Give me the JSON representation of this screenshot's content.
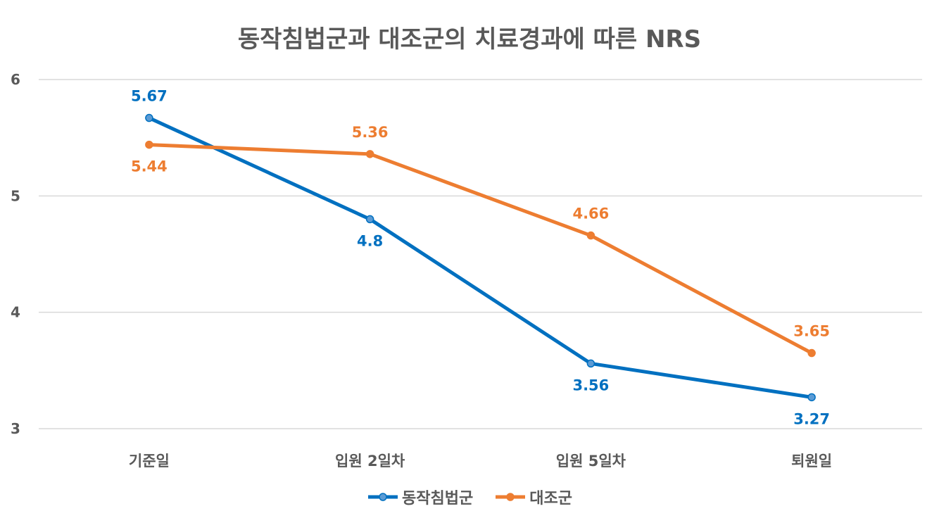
{
  "chart_data": {
    "type": "line",
    "title": "동작침법군과 대조군의 치료경과에 따른 NRS",
    "categories": [
      "기준일",
      "입원 2일차",
      "입원 5일차",
      "퇴원일"
    ],
    "series": [
      {
        "name": "동작침법군",
        "values": [
          5.67,
          4.8,
          3.56,
          3.27
        ],
        "color": "#0070C0",
        "marker_fill": "#5B9BD5"
      },
      {
        "name": "대조군",
        "values": [
          5.44,
          5.36,
          4.66,
          3.65
        ],
        "color": "#ED7D31",
        "marker_fill": "#ED7D31"
      }
    ],
    "ylim": [
      3,
      6
    ],
    "yticks": [
      3,
      4,
      5,
      6
    ],
    "grid": true,
    "legend": "bottom",
    "xlabel": "",
    "ylabel": ""
  }
}
